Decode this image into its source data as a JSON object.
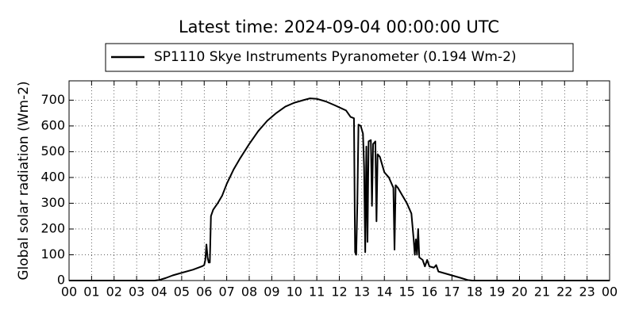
{
  "chart_data": {
    "type": "line",
    "title": "Latest time: 2024-09-04 00:00:00 UTC",
    "y_label": "Global solar radiation (Wm-2)",
    "x": [
      0,
      3.8,
      4.0,
      4.3,
      4.6,
      5.0,
      5.5,
      5.9,
      6.0,
      6.05,
      6.1,
      6.15,
      6.2,
      6.25,
      6.3,
      6.4,
      6.6,
      6.8,
      7.0,
      7.3,
      7.6,
      8.0,
      8.4,
      8.8,
      9.2,
      9.6,
      10.0,
      10.4,
      10.7,
      11.0,
      11.4,
      11.8,
      12.1,
      12.3,
      12.5,
      12.65,
      12.7,
      12.75,
      12.8,
      12.85,
      12.95,
      13.05,
      13.1,
      13.15,
      13.2,
      13.25,
      13.3,
      13.4,
      13.45,
      13.5,
      13.6,
      13.65,
      13.7,
      13.8,
      13.9,
      14.0,
      14.2,
      14.4,
      14.45,
      14.5,
      14.6,
      14.8,
      15.0,
      15.2,
      15.3,
      15.35,
      15.4,
      15.45,
      15.5,
      15.55,
      15.7,
      15.8,
      15.9,
      16.0,
      16.2,
      16.3,
      16.4,
      16.6,
      17.0,
      17.4,
      17.7,
      17.9,
      24
    ],
    "series": [
      {
        "name": "SP1110 Skye Instruments Pyranometer (0.194 Wm-2)",
        "color": "#000000",
        "values": [
          0,
          0,
          2,
          10,
          20,
          30,
          42,
          55,
          60,
          80,
          140,
          90,
          70,
          70,
          250,
          275,
          300,
          330,
          375,
          430,
          475,
          530,
          580,
          620,
          650,
          675,
          690,
          700,
          707,
          705,
          695,
          680,
          668,
          660,
          635,
          630,
          110,
          100,
          300,
          605,
          600,
          570,
          440,
          110,
          520,
          150,
          540,
          545,
          290,
          530,
          540,
          230,
          490,
          480,
          450,
          420,
          400,
          360,
          120,
          370,
          360,
          330,
          300,
          260,
          160,
          100,
          160,
          100,
          200,
          90,
          80,
          55,
          80,
          55,
          50,
          60,
          35,
          30,
          20,
          10,
          2,
          0,
          0
        ]
      }
    ],
    "xlim": [
      0,
      24
    ],
    "xticks": [
      {
        "value": 0,
        "label": "00"
      },
      {
        "value": 1,
        "label": "01"
      },
      {
        "value": 2,
        "label": "02"
      },
      {
        "value": 3,
        "label": "03"
      },
      {
        "value": 4,
        "label": "04"
      },
      {
        "value": 5,
        "label": "05"
      },
      {
        "value": 6,
        "label": "06"
      },
      {
        "value": 7,
        "label": "07"
      },
      {
        "value": 8,
        "label": "08"
      },
      {
        "value": 9,
        "label": "09"
      },
      10,
      11,
      12,
      13,
      14,
      15,
      16,
      17,
      18,
      19,
      20,
      21,
      22,
      23,
      {
        "value": 24,
        "label": "00"
      }
    ],
    "ylim": [
      0,
      775
    ],
    "yticks": [
      0,
      100,
      200,
      300,
      400,
      500,
      600,
      700
    ],
    "grid": true,
    "legend": "top"
  }
}
